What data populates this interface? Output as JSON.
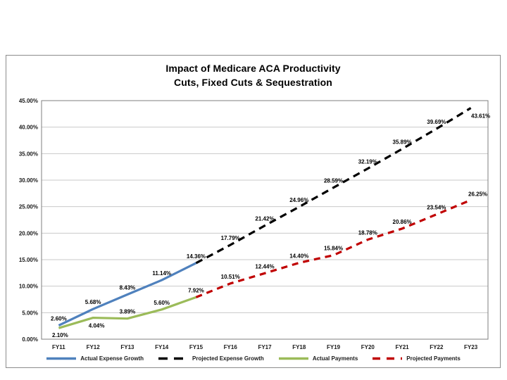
{
  "chart_title": {
    "line1": "Impact of Medicare ACA Productivity",
    "line2": "Cuts, Fixed Cuts & Sequestration"
  },
  "chart_data": {
    "type": "line",
    "title": "Impact of Medicare ACA Productivity Cuts, Fixed Cuts & Sequestration",
    "categories": [
      "FY11",
      "FY12",
      "FY13",
      "FY14",
      "FY15",
      "FY16",
      "FY17",
      "FY18",
      "FY19",
      "FY20",
      "FY21",
      "FY22",
      "FY23"
    ],
    "xlabel": "",
    "ylabel": "",
    "ylim": [
      0,
      45
    ],
    "ytick_step": 5,
    "ytick_format": "0.00%",
    "grid": true,
    "legend_position": "bottom",
    "colors": {
      "gridline": "#c9c9c9",
      "frame": "#7f7f7f",
      "background": "#ffffff"
    },
    "series": [
      {
        "name": "Actual Expense Growth",
        "color": "#4f81bd",
        "style": "solid",
        "start": 0,
        "values": [
          2.6,
          5.68,
          8.43,
          11.14,
          14.36
        ]
      },
      {
        "name": "Projected Expense Growth",
        "color": "#000000",
        "style": "dashed",
        "dash": "10,7",
        "legend_dash": "13,9",
        "start": 4,
        "label_skip_first": true,
        "values": [
          14.36,
          17.79,
          21.42,
          24.96,
          28.59,
          32.19,
          35.89,
          39.69,
          43.61
        ],
        "label_offsets": {
          "8": [
            14,
            14
          ]
        }
      },
      {
        "name": "Actual Payments",
        "color": "#9bbb59",
        "style": "solid",
        "start": 0,
        "values": [
          2.1,
          4.04,
          3.89,
          5.6,
          7.92
        ],
        "label_offsets": {
          "0": [
            2,
            13
          ],
          "1": [
            5,
            14
          ]
        }
      },
      {
        "name": "Projected Payments",
        "color": "#c00000",
        "style": "dashed",
        "dash": "9,7",
        "legend_dash": "11,9",
        "start": 4,
        "label_skip_first": true,
        "values": [
          7.92,
          10.51,
          12.44,
          14.4,
          15.84,
          18.78,
          20.86,
          23.54,
          26.25
        ],
        "label_offsets": {
          "8": [
            10,
            -6
          ]
        }
      }
    ]
  }
}
